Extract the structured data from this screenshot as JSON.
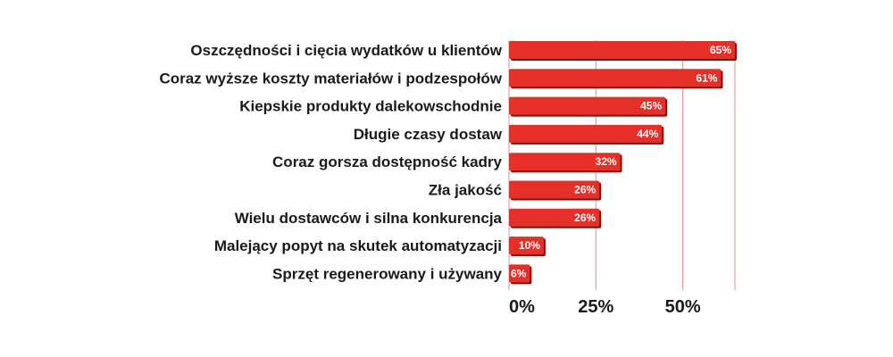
{
  "chart_data": {
    "type": "bar",
    "orientation": "horizontal",
    "categories": [
      "Oszczędności i cięcia wydatków u klientów",
      "Coraz wyższe koszty materiałów i podzespołów",
      "Kiepskie produkty dalekowschodnie",
      "Długie czasy dostaw",
      "Coraz gorsza dostępność kadry",
      "Zła jakość",
      "Wielu dostawców i silna konkurencja",
      "Malejący popyt na skutek automatyzacji",
      "Sprzęt regenerowany i używany"
    ],
    "values": [
      65,
      61,
      45,
      44,
      32,
      26,
      26,
      10,
      6
    ],
    "value_labels": [
      "65%",
      "61%",
      "45%",
      "44%",
      "32%",
      "26%",
      "26%",
      "10%",
      "6%"
    ],
    "xlim": [
      0,
      65
    ],
    "ticks": [
      0,
      25,
      50
    ],
    "tick_labels": [
      "0%",
      "25%",
      "50%"
    ],
    "grid": true,
    "bar_color": "#e53029",
    "bar_shadow_color": "#7a1410",
    "grid_color": "#f08a8a"
  }
}
